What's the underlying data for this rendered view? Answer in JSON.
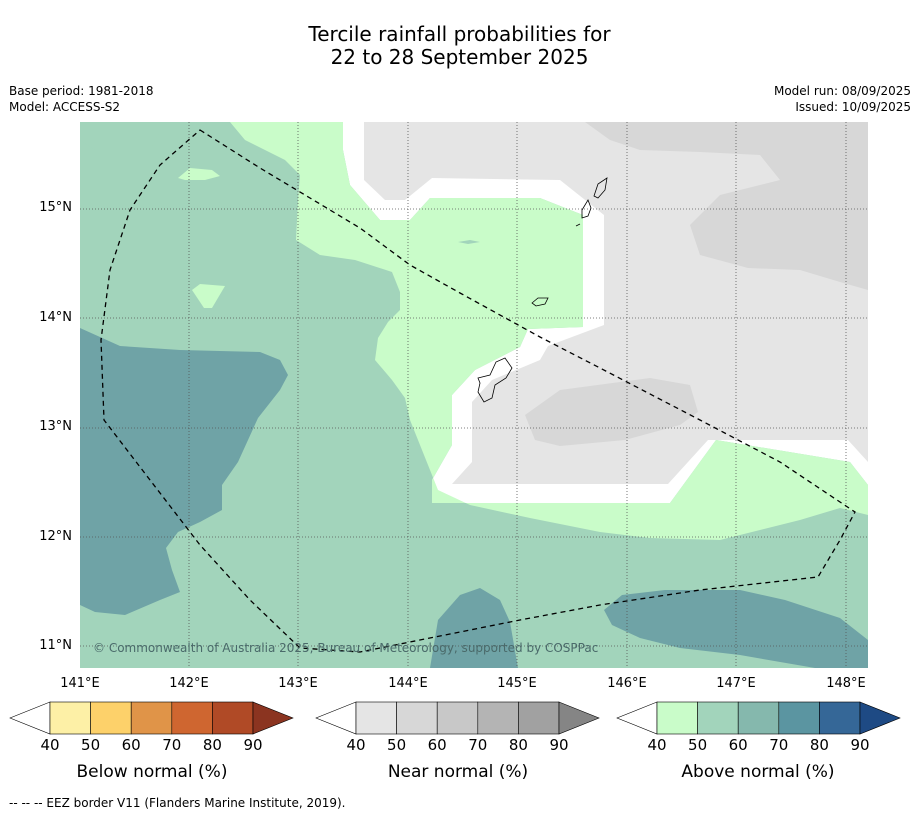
{
  "title": {
    "line1": "Tercile rainfall probabilities for",
    "line2": "22 to 28 September 2025"
  },
  "meta": {
    "base_period": "Base period: 1981-2018",
    "model": "Model: ACCESS-S2",
    "model_run": "Model run: 08/09/2025",
    "issued": "Issued: 10/09/2025"
  },
  "axes": {
    "lat_labels": [
      "15°N",
      "14°N",
      "13°N",
      "12°N",
      "11°N"
    ],
    "lon_labels": [
      "141°E",
      "142°E",
      "143°E",
      "144°E",
      "145°E",
      "146°E",
      "147°E",
      "148°E"
    ]
  },
  "copyright": "© Commonwealth of Australia 2025, Bureau of Meteorology, supported by COSPPac",
  "colorbars": [
    {
      "label": "Below normal (%)",
      "ticks": [
        "40",
        "50",
        "60",
        "70",
        "80",
        "90"
      ],
      "colors": [
        "#ffffff",
        "#fdf0a6",
        "#fdd16a",
        "#e09448",
        "#cf6630",
        "#b04a26",
        "#8b3420"
      ]
    },
    {
      "label": "Near normal (%)",
      "ticks": [
        "40",
        "50",
        "60",
        "70",
        "80",
        "90"
      ],
      "colors": [
        "#ffffff",
        "#e5e5e5",
        "#d7d7d7",
        "#c8c8c8",
        "#b4b4b4",
        "#a1a1a1",
        "#858585"
      ]
    },
    {
      "label": "Above normal (%)",
      "ticks": [
        "40",
        "50",
        "60",
        "70",
        "80",
        "90"
      ],
      "colors": [
        "#ffffff",
        "#c9fcc9",
        "#a2d4bb",
        "#85b8ad",
        "#5b95a1",
        "#356797",
        "#1e4a84"
      ]
    }
  ],
  "footer": "--  --  -- EEZ border V11 (Flanders Marine Institute, 2019)."
}
